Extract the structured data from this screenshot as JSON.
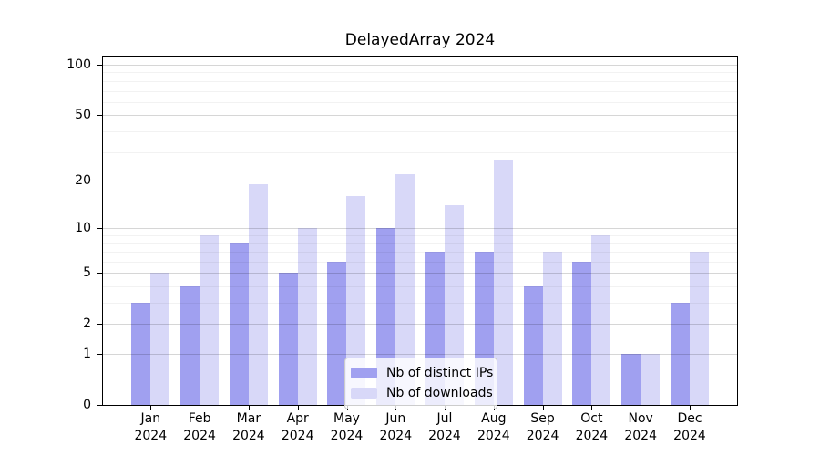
{
  "chart_data": {
    "type": "bar",
    "title": "DelayedArray 2024",
    "categories": [
      "Jan",
      "Feb",
      "Mar",
      "Apr",
      "May",
      "Jun",
      "Jul",
      "Aug",
      "Sep",
      "Oct",
      "Nov",
      "Dec"
    ],
    "x_tick_year": "2024",
    "series": [
      {
        "name": "Nb of distinct IPs",
        "color": "#a0a0f0",
        "values": [
          3,
          4,
          8,
          5,
          6,
          10,
          7,
          7,
          4,
          6,
          1,
          3
        ]
      },
      {
        "name": "Nb of downloads",
        "color": "#d8d8f8",
        "values": [
          5,
          9,
          19,
          10,
          16,
          22,
          14,
          27,
          7,
          9,
          1,
          7
        ]
      }
    ],
    "yscale": "log1p",
    "ylim": [
      0,
      100
    ],
    "y_major_ticks": [
      0,
      1,
      2,
      5,
      10,
      20,
      50,
      100
    ],
    "y_minor_ticks": [
      3,
      4,
      6,
      7,
      8,
      9,
      30,
      40,
      60,
      70,
      80,
      90
    ],
    "grid": true,
    "legend_position": "lower center",
    "legend_border_color": "#cccccc"
  }
}
